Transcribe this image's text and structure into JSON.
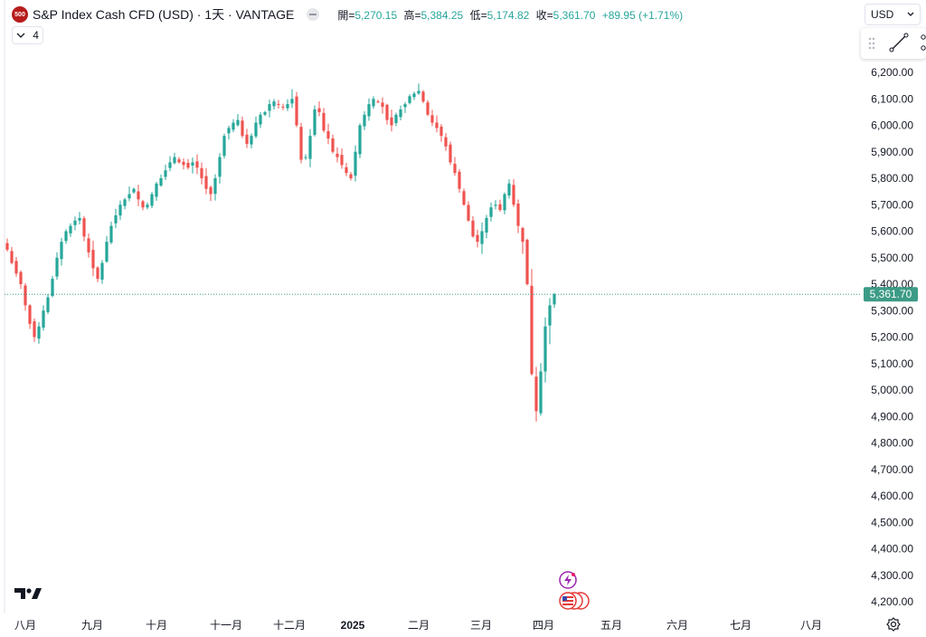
{
  "header": {
    "badge": "500",
    "symbol_title": "S&P Index Cash CFD (USD) · 1天 · VANTAGE",
    "ohlc": {
      "open_label": "開=",
      "open_value": "5,270.15",
      "high_label": "高=",
      "high_value": "5,384.25",
      "low_label": "低=",
      "low_value": "5,174.82",
      "close_label": "收=",
      "close_value": "5,361.70",
      "change": "+89.95 (+1.71%)"
    },
    "indicator_count": "4",
    "currency": "USD"
  },
  "colors": {
    "up": "#26a69a",
    "down": "#ef5350",
    "last_price": "#3c9b86",
    "axis_text": "#131722"
  },
  "icons": [
    "chevron-down-icon",
    "drag-handle-icon",
    "trend-line-icon",
    "nodes-icon",
    "tradingview-logo-icon",
    "settings-gear-icon",
    "lightning-event-icon",
    "us-flag-event-icon"
  ],
  "chart_data": {
    "type": "candlestick",
    "title": "S&P Index Cash CFD (USD) · 1天 · VANTAGE",
    "ylim": [
      4150,
      6280
    ],
    "y_ticks": [
      "6,200.00",
      "6,100.00",
      "6,000.00",
      "5,900.00",
      "5,800.00",
      "5,700.00",
      "5,600.00",
      "5,500.00",
      "5,400.00",
      "5,300.00",
      "5,200.00",
      "5,100.00",
      "5,000.00",
      "4,900.00",
      "4,800.00",
      "4,700.00",
      "4,600.00",
      "4,500.00",
      "4,400.00",
      "4,300.00",
      "4,200.00"
    ],
    "x_labels": [
      "八月",
      "九月",
      "十月",
      "十一月",
      "十二月",
      "2025",
      "二月",
      "三月",
      "四月",
      "五月",
      "六月",
      "七月",
      "八月"
    ],
    "last_price": 5361.7,
    "last_price_label": "5,361.70",
    "close_path": [
      5530,
      5480,
      5440,
      5400,
      5320,
      5250,
      5200,
      5240,
      5300,
      5350,
      5420,
      5500,
      5560,
      5600,
      5620,
      5640,
      5650,
      5580,
      5520,
      5460,
      5420,
      5480,
      5560,
      5620,
      5660,
      5700,
      5720,
      5740,
      5760,
      5720,
      5690,
      5700,
      5740,
      5780,
      5800,
      5830,
      5860,
      5880,
      5860,
      5850,
      5840,
      5860,
      5840,
      5800,
      5760,
      5740,
      5800,
      5880,
      5960,
      5990,
      6010,
      6020,
      5960,
      5930,
      5960,
      6010,
      6040,
      6050,
      6080,
      6090,
      6080,
      6070,
      6080,
      6100,
      6000,
      5870,
      5880,
      5960,
      6060,
      6050,
      5980,
      5950,
      5900,
      5880,
      5850,
      5820,
      5800,
      5900,
      6000,
      6040,
      6080,
      6100,
      6090,
      6070,
      6020,
      6000,
      6040,
      6060,
      6080,
      6110,
      6120,
      6130,
      6090,
      6040,
      6010,
      5990,
      5960,
      5920,
      5860,
      5820,
      5760,
      5700,
      5640,
      5580,
      5560,
      5600,
      5650,
      5690,
      5700,
      5680,
      5740,
      5780,
      5700,
      5620,
      5560,
      5400,
      5060,
      4920,
      5070,
      5240,
      5320,
      5361.7
    ]
  }
}
